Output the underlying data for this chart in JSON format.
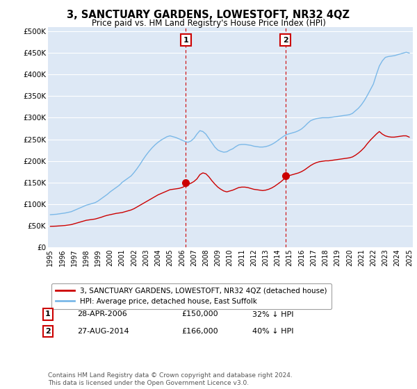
{
  "title": "3, SANCTUARY GARDENS, LOWESTOFT, NR32 4QZ",
  "subtitle": "Price paid vs. HM Land Registry's House Price Index (HPI)",
  "ylabel_ticks": [
    "£0",
    "£50K",
    "£100K",
    "£150K",
    "£200K",
    "£250K",
    "£300K",
    "£350K",
    "£400K",
    "£450K",
    "£500K"
  ],
  "ytick_values": [
    0,
    50000,
    100000,
    150000,
    200000,
    250000,
    300000,
    350000,
    400000,
    450000,
    500000
  ],
  "ylim": [
    0,
    510000
  ],
  "xlim_start": 1994.8,
  "xlim_end": 2025.3,
  "hpi_color": "#7ab8e8",
  "price_color": "#cc0000",
  "annotation_color": "#cc0000",
  "background_color": "#ffffff",
  "plot_bg_color": "#dde8f5",
  "grid_color": "#ffffff",
  "legend_label_red": "3, SANCTUARY GARDENS, LOWESTOFT, NR32 4QZ (detached house)",
  "legend_label_blue": "HPI: Average price, detached house, East Suffolk",
  "transaction1_x": 2006.32,
  "transaction1_y": 150000,
  "transaction1_label": "1",
  "transaction2_x": 2014.65,
  "transaction2_y": 166000,
  "transaction2_label": "2",
  "table_rows": [
    {
      "label": "1",
      "date": "28-APR-2006",
      "price": "£150,000",
      "hpi": "32% ↓ HPI"
    },
    {
      "label": "2",
      "date": "27-AUG-2014",
      "price": "£166,000",
      "hpi": "40% ↓ HPI"
    }
  ],
  "footer": "Contains HM Land Registry data © Crown copyright and database right 2024.\nThis data is licensed under the Open Government Licence v3.0.",
  "hpi_years": [
    1995.0,
    1995.25,
    1995.5,
    1995.75,
    1996.0,
    1996.25,
    1996.5,
    1996.75,
    1997.0,
    1997.25,
    1997.5,
    1997.75,
    1998.0,
    1998.25,
    1998.5,
    1998.75,
    1999.0,
    1999.25,
    1999.5,
    1999.75,
    2000.0,
    2000.25,
    2000.5,
    2000.75,
    2001.0,
    2001.25,
    2001.5,
    2001.75,
    2002.0,
    2002.25,
    2002.5,
    2002.75,
    2003.0,
    2003.25,
    2003.5,
    2003.75,
    2004.0,
    2004.25,
    2004.5,
    2004.75,
    2005.0,
    2005.25,
    2005.5,
    2005.75,
    2006.0,
    2006.25,
    2006.5,
    2006.75,
    2007.0,
    2007.25,
    2007.5,
    2007.75,
    2008.0,
    2008.25,
    2008.5,
    2008.75,
    2009.0,
    2009.25,
    2009.5,
    2009.75,
    2010.0,
    2010.25,
    2010.5,
    2010.75,
    2011.0,
    2011.25,
    2011.5,
    2011.75,
    2012.0,
    2012.25,
    2012.5,
    2012.75,
    2013.0,
    2013.25,
    2013.5,
    2013.75,
    2014.0,
    2014.25,
    2014.5,
    2014.75,
    2015.0,
    2015.25,
    2015.5,
    2015.75,
    2016.0,
    2016.25,
    2016.5,
    2016.75,
    2017.0,
    2017.25,
    2017.5,
    2017.75,
    2018.0,
    2018.25,
    2018.5,
    2018.75,
    2019.0,
    2019.25,
    2019.5,
    2019.75,
    2020.0,
    2020.25,
    2020.5,
    2020.75,
    2021.0,
    2021.25,
    2021.5,
    2021.75,
    2022.0,
    2022.25,
    2022.5,
    2022.75,
    2023.0,
    2023.25,
    2023.5,
    2023.75,
    2024.0,
    2024.25,
    2024.5,
    2024.75,
    2025.0
  ],
  "hpi_values": [
    75000,
    75500,
    76000,
    77000,
    78000,
    79000,
    80500,
    82000,
    85000,
    88000,
    91000,
    94000,
    97000,
    99000,
    101000,
    103000,
    107000,
    112000,
    117000,
    122000,
    128000,
    133000,
    138000,
    143000,
    150000,
    155000,
    160000,
    165000,
    173000,
    182000,
    192000,
    203000,
    213000,
    222000,
    230000,
    237000,
    243000,
    248000,
    252000,
    256000,
    258000,
    256000,
    254000,
    251000,
    248000,
    245000,
    243000,
    246000,
    252000,
    262000,
    270000,
    268000,
    262000,
    252000,
    242000,
    232000,
    225000,
    222000,
    220000,
    221000,
    225000,
    228000,
    233000,
    237000,
    238000,
    238000,
    237000,
    236000,
    234000,
    233000,
    232000,
    232000,
    233000,
    235000,
    238000,
    242000,
    247000,
    252000,
    257000,
    261000,
    263000,
    265000,
    267000,
    270000,
    274000,
    280000,
    287000,
    293000,
    296000,
    298000,
    299000,
    300000,
    300000,
    300000,
    301000,
    302000,
    303000,
    304000,
    305000,
    306000,
    307000,
    310000,
    316000,
    322000,
    330000,
    340000,
    352000,
    365000,
    378000,
    400000,
    420000,
    432000,
    440000,
    442000,
    443000,
    444000,
    446000,
    448000,
    450000,
    452000,
    450000
  ],
  "red_values": [
    48000,
    48200,
    48500,
    49000,
    49500,
    50000,
    51000,
    52000,
    54000,
    56000,
    58000,
    60000,
    62000,
    63000,
    64000,
    65000,
    67000,
    69000,
    71500,
    73500,
    75000,
    76500,
    78000,
    79000,
    80000,
    82000,
    84000,
    86000,
    89000,
    93000,
    97000,
    101000,
    105000,
    109000,
    113000,
    117000,
    121000,
    124000,
    127000,
    130000,
    133000,
    134000,
    135000,
    136000,
    138000,
    141000,
    145000,
    148000,
    152000,
    158000,
    168000,
    172000,
    170000,
    163000,
    154000,
    146000,
    139000,
    134000,
    130000,
    128000,
    130000,
    132000,
    135000,
    138000,
    139000,
    139000,
    138000,
    136000,
    134000,
    133000,
    132000,
    131000,
    132000,
    134000,
    137000,
    141000,
    146000,
    151000,
    157000,
    162000,
    166000,
    168000,
    170000,
    172000,
    175000,
    179000,
    184000,
    189000,
    193000,
    196000,
    198000,
    199000,
    200000,
    200000,
    201000,
    202000,
    203000,
    204000,
    205000,
    206000,
    207000,
    209000,
    213000,
    218000,
    224000,
    231000,
    240000,
    248000,
    255000,
    262000,
    268000,
    262000,
    258000,
    256000,
    255000,
    255000,
    256000,
    257000,
    258000,
    258000,
    255000
  ]
}
